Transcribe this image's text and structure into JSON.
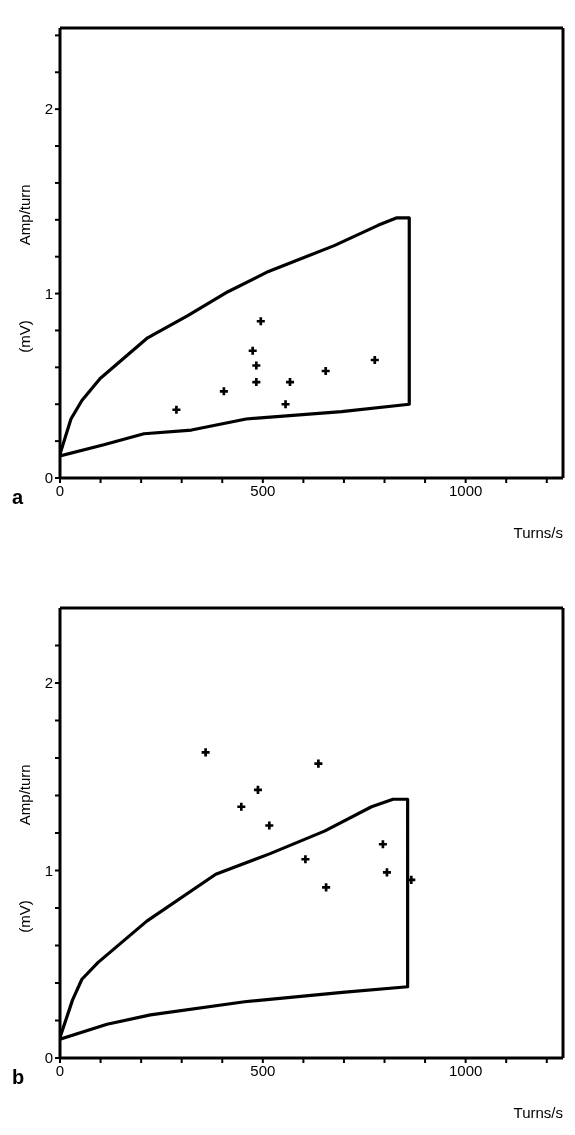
{
  "chart_data": [
    {
      "type": "scatter",
      "xlabel": "Turns/s",
      "ylabel": "(mV) Amp/turn",
      "annotations": [
        "a"
      ],
      "xlim": [
        0,
        1240
      ],
      "ylim": [
        0,
        2.44
      ],
      "xticks": [
        0,
        {
          "value": 100,
          "label": null
        },
        {
          "value": 200,
          "label": null
        },
        {
          "value": 300,
          "label": null
        },
        {
          "value": 400,
          "label": null
        },
        500,
        {
          "value": 600,
          "label": null
        },
        {
          "value": 700,
          "label": null
        },
        {
          "value": 800,
          "label": null
        },
        {
          "value": 900,
          "label": null
        },
        1000,
        {
          "value": 1100,
          "label": null
        },
        {
          "value": 1200,
          "label": null
        }
      ],
      "yticks": [
        0,
        {
          "value": 0.2,
          "label": null
        },
        {
          "value": 0.4,
          "label": null
        },
        {
          "value": 0.6,
          "label": null
        },
        {
          "value": 0.8,
          "label": null
        },
        1,
        {
          "value": 1.2,
          "label": null
        },
        {
          "value": 1.4,
          "label": null
        },
        {
          "value": 1.6,
          "label": null
        },
        {
          "value": 1.8,
          "label": null
        },
        2,
        {
          "value": 2.2,
          "label": null
        },
        {
          "value": 2.4,
          "label": null
        }
      ],
      "series": [
        {
          "type": "line",
          "color": "#000000",
          "marker": "none",
          "line_style": "solid",
          "x": [
            0,
            27,
            54,
            99,
            216,
            315,
            414,
            514,
            676,
            784,
            829,
            861,
            861,
            694,
            459,
            324,
            207,
            108,
            0
          ],
          "values": [
            0.13,
            0.32,
            0.42,
            0.54,
            0.76,
            0.88,
            1.01,
            1.12,
            1.26,
            1.37,
            1.41,
            1.41,
            0.4,
            0.36,
            0.32,
            0.26,
            0.24,
            0.18,
            0.12
          ]
        },
        {
          "color": "#000000",
          "marker": "cross",
          "x": [
            287,
            404,
            475,
            484,
            484,
            495,
            556,
            567,
            655,
            776
          ],
          "values": [
            0.37,
            0.47,
            0.69,
            0.61,
            0.52,
            0.85,
            0.4,
            0.52,
            0.58,
            0.64
          ]
        }
      ]
    },
    {
      "type": "scatter",
      "xlabel": "Turns/s",
      "ylabel": "(mV) Amp/turn",
      "annotations": [
        "b"
      ],
      "xlim": [
        0,
        1240
      ],
      "ylim": [
        0,
        2.4
      ],
      "xticks": [
        0,
        {
          "value": 100,
          "label": null
        },
        {
          "value": 200,
          "label": null
        },
        {
          "value": 300,
          "label": null
        },
        {
          "value": 400,
          "label": null
        },
        500,
        {
          "value": 600,
          "label": null
        },
        {
          "value": 700,
          "label": null
        },
        {
          "value": 800,
          "label": null
        },
        {
          "value": 900,
          "label": null
        },
        1000,
        {
          "value": 1100,
          "label": null
        },
        {
          "value": 1200,
          "label": null
        }
      ],
      "yticks": [
        0,
        {
          "value": 0.2,
          "label": null
        },
        {
          "value": 0.4,
          "label": null
        },
        {
          "value": 0.6,
          "label": null
        },
        {
          "value": 0.8,
          "label": null
        },
        1,
        {
          "value": 1.2,
          "label": null
        },
        {
          "value": 1.4,
          "label": null
        },
        {
          "value": 1.6,
          "label": null
        },
        {
          "value": 1.8,
          "label": null
        },
        2,
        {
          "value": 2.2,
          "label": null
        }
      ],
      "series": [
        {
          "type": "line",
          "color": "#000000",
          "marker": "none",
          "line_style": "solid",
          "x": [
            0,
            31,
            54,
            94,
            214,
            384,
            518,
            652,
            768,
            821,
            857,
            857,
            696,
            455,
            223,
            116,
            0
          ],
          "values": [
            0.11,
            0.31,
            0.42,
            0.51,
            0.73,
            0.98,
            1.09,
            1.21,
            1.34,
            1.38,
            1.38,
            0.38,
            0.35,
            0.3,
            0.23,
            0.18,
            0.1
          ]
        },
        {
          "color": "#000000",
          "marker": "cross",
          "x": [
            359,
            637,
            488,
            447,
            516,
            796,
            605,
            806,
            656,
            866
          ],
          "values": [
            1.63,
            1.57,
            1.43,
            1.34,
            1.24,
            1.14,
            1.06,
            0.99,
            0.91,
            0.95
          ]
        }
      ]
    }
  ]
}
